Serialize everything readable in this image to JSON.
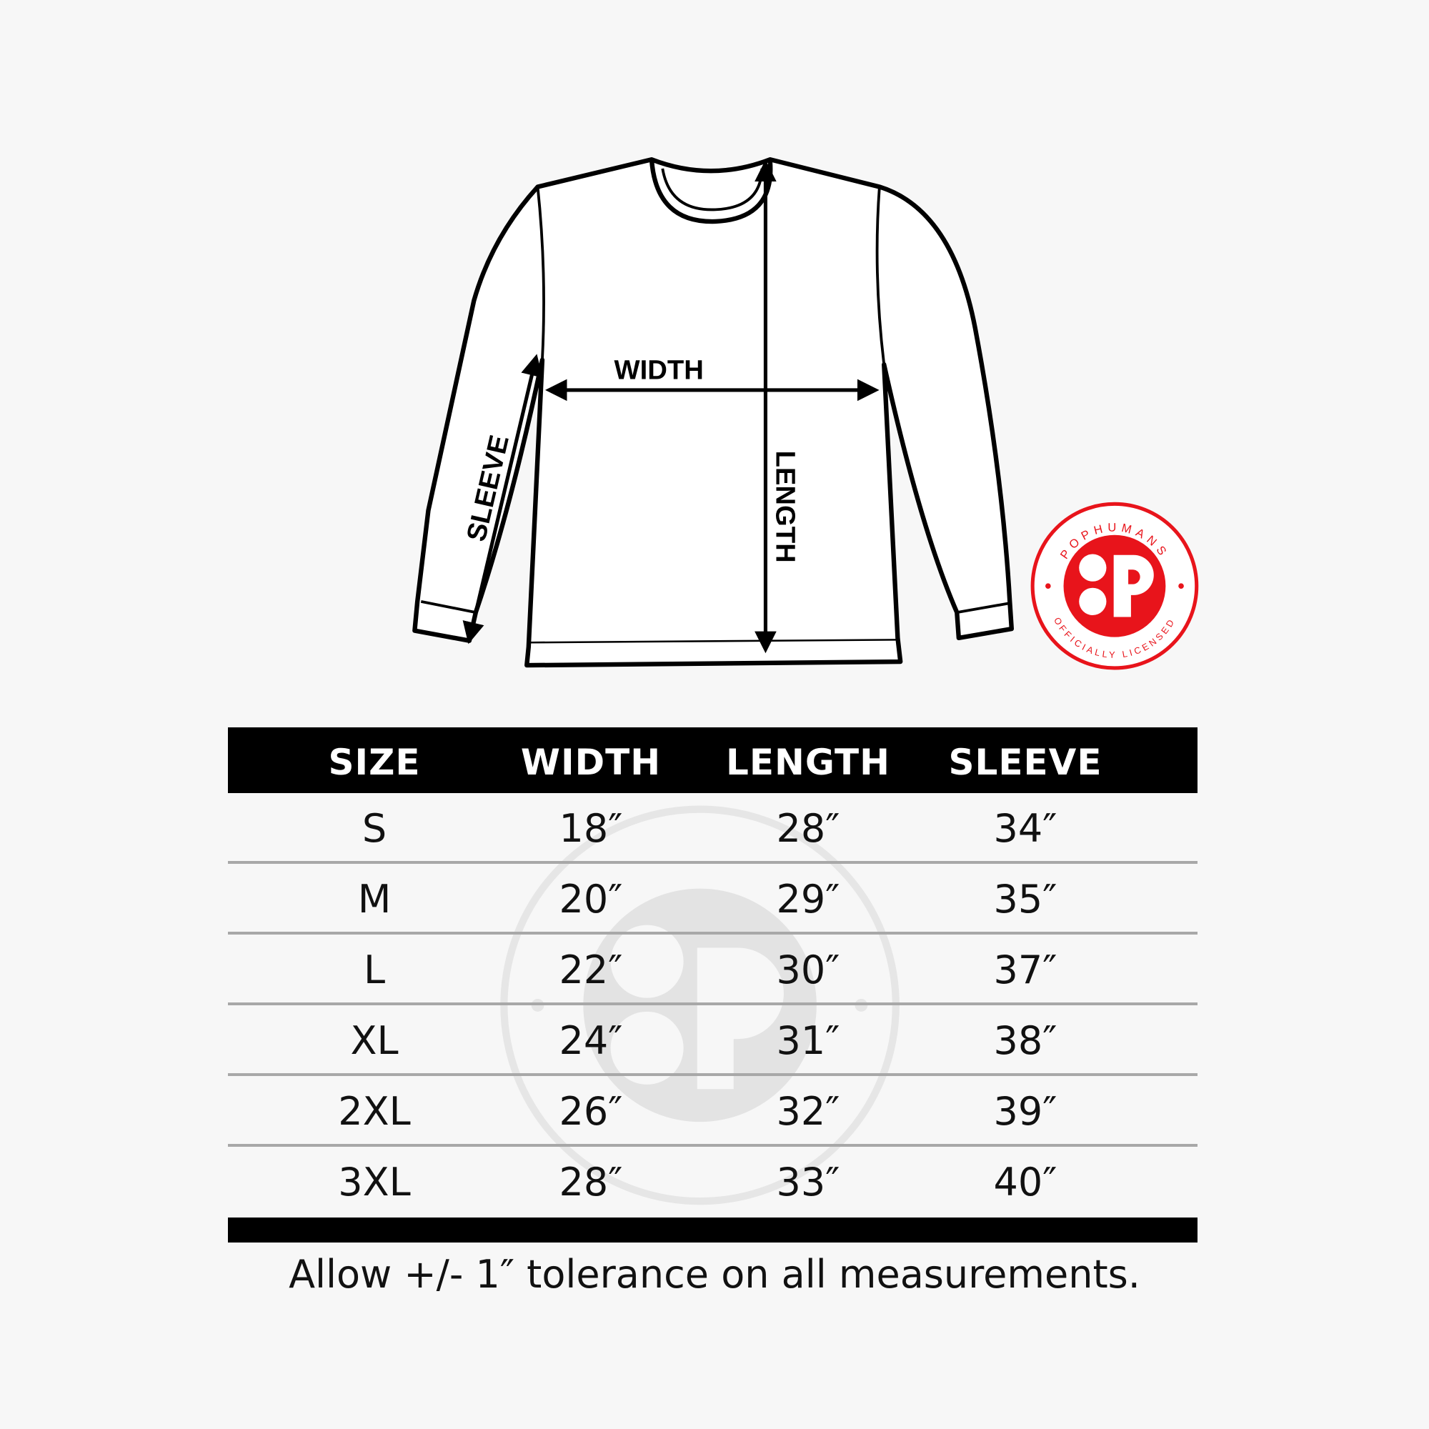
{
  "diagram": {
    "labels": {
      "width": "WIDTH",
      "length": "LENGTH",
      "sleeve": "SLEEVE"
    }
  },
  "logo": {
    "brand": "POPHUMANS",
    "tagline": "OFFICIALLY LICENSED",
    "color": "#e8141b"
  },
  "table": {
    "headers": [
      "SIZE",
      "WIDTH",
      "LENGTH",
      "SLEEVE"
    ],
    "rows": [
      [
        "S",
        "18″",
        "28″",
        "34″"
      ],
      [
        "M",
        "20″",
        "29″",
        "35″"
      ],
      [
        "L",
        "22″",
        "30″",
        "37″"
      ],
      [
        "XL",
        "24″",
        "31″",
        "38″"
      ],
      [
        "2XL",
        "26″",
        "32″",
        "39″"
      ],
      [
        "3XL",
        "28″",
        "33″",
        "40″"
      ]
    ]
  },
  "footer": {
    "note": "Allow +/- 1″ tolerance on all measurements."
  }
}
